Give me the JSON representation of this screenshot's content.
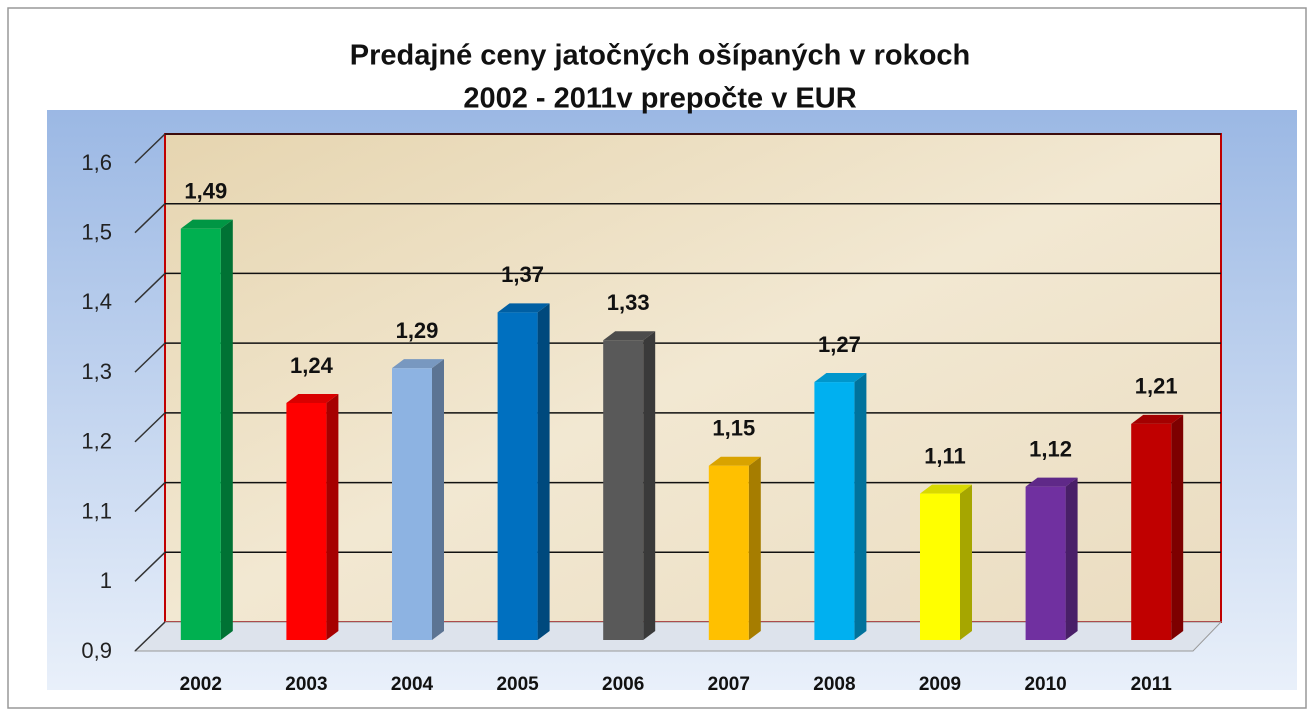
{
  "chart_data": {
    "type": "bar3d",
    "title": [
      "Predajné ceny jatočných ošípaných v rokoch",
      "2002 - 2011v prepočte  v  EUR"
    ],
    "categories": [
      "2002",
      "2003",
      "2004",
      "2005",
      "2006",
      "2007",
      "2008",
      "2009",
      "2010",
      "2011"
    ],
    "values": [
      1.49,
      1.24,
      1.29,
      1.37,
      1.33,
      1.15,
      1.27,
      1.11,
      1.12,
      1.21
    ],
    "value_labels": [
      "1,49",
      "1,24",
      "1,29",
      "1,37",
      "1,33",
      "1,15",
      "1,27",
      "1,11",
      "1,12",
      "1,21"
    ],
    "colors": [
      "#00b050",
      "#ff0000",
      "#8db3e2",
      "#0070c0",
      "#595959",
      "#ffc000",
      "#00b0f0",
      "#ffff00",
      "#7030a0",
      "#c00000"
    ],
    "ylim": [
      0.9,
      1.6
    ],
    "yticks": [
      {
        "value": 0.9,
        "label": "0,9"
      },
      1,
      {
        "value": 1.1,
        "label": "1,1"
      },
      {
        "value": 1.2,
        "label": "1,2"
      },
      {
        "value": 1.3,
        "label": "1,3"
      },
      {
        "value": 1.4,
        "label": "1,4"
      },
      {
        "value": 1.5,
        "label": "1,5"
      },
      {
        "value": 1.6,
        "label": "1,6"
      }
    ],
    "grid": true
  }
}
